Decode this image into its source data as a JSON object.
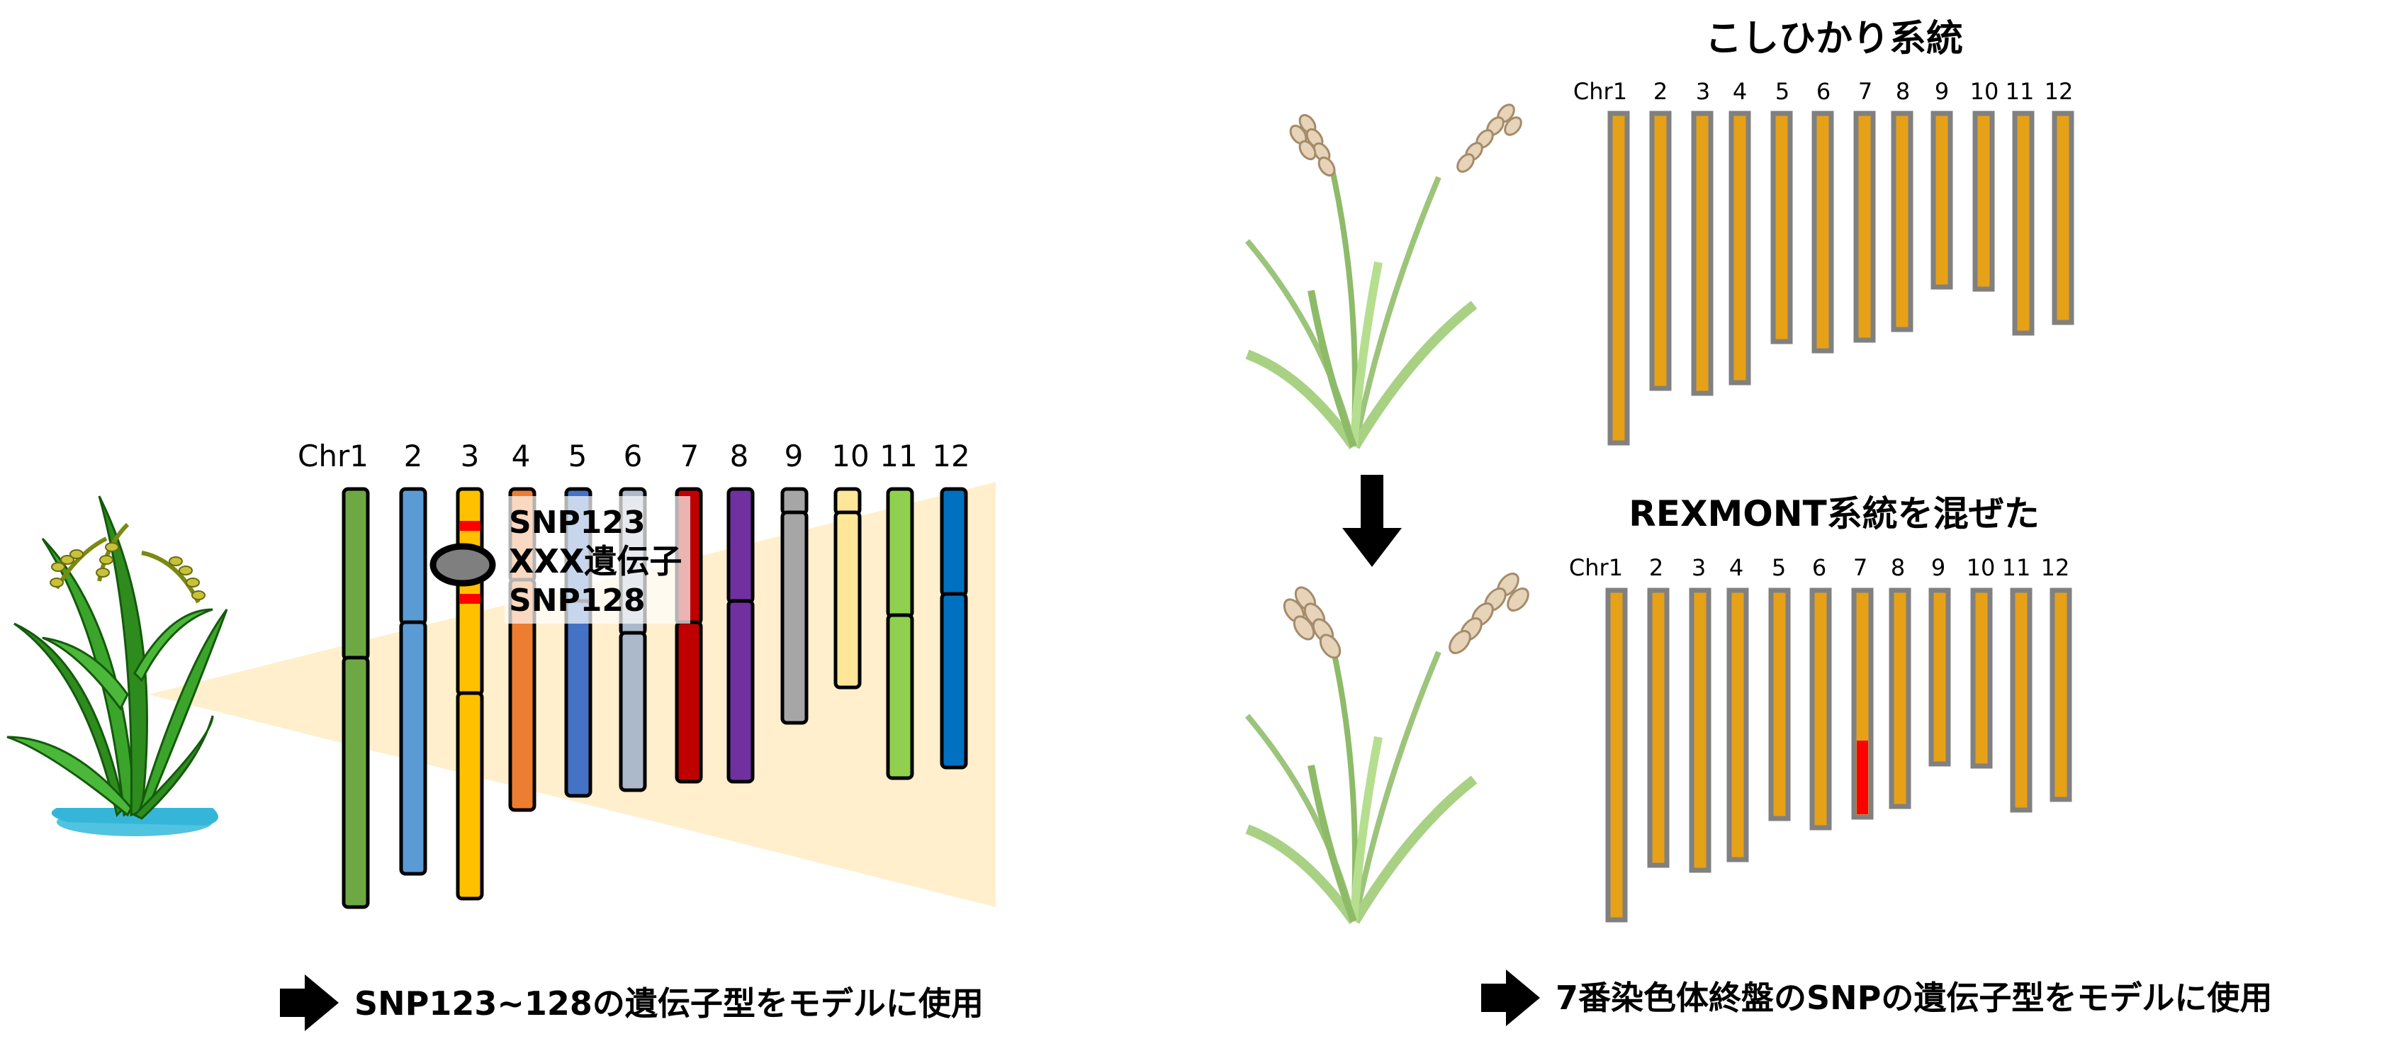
{
  "left_panel": {
    "chromosome_labels": [
      "Chr1",
      "2",
      "3",
      "4",
      "5",
      "6",
      "7",
      "8",
      "9",
      "10",
      "11",
      "12"
    ],
    "callout": [
      "SNP123",
      "XXX遺伝子",
      "SNP128"
    ],
    "caption": "SNP123~128の遺伝子型をモデルに使用",
    "colors": {
      "chr1": "#6ea845",
      "chr2": "#5b9bd5",
      "chr3": "#ffc000",
      "chr4": "#ed7d31",
      "chr5": "#4472c4",
      "chr6": "#acb9ca",
      "chr7": "#c00000",
      "chr8": "#7030a0",
      "chr9": "#a6a6a6",
      "chr10": "#ffe699",
      "chr11": "#8fd14f",
      "chr12": "#0070c0",
      "snp_marker": "#ff0000",
      "zoom_cone": "#ffefcc",
      "gene_oval": "#7f7f7f"
    }
  },
  "right_panel": {
    "koshihikari_title": "こしひかり系統",
    "rexmont_title": "REXMONT系統を混ぜた",
    "chromosome_labels": [
      "Chr1",
      "2",
      "3",
      "4",
      "5",
      "6",
      "7",
      "8",
      "9",
      "10",
      "11",
      "12"
    ],
    "caption": "7番染色体終盤のSNPの遺伝子型をモデルに使用",
    "colors": {
      "bar_fill": "#e6a117",
      "bar_border": "#808080",
      "introgression": "#ff0000"
    }
  },
  "icons": [
    "rice-plant-icon",
    "rice-ear-plant-icon",
    "down-arrow-icon",
    "right-arrow-icon"
  ]
}
